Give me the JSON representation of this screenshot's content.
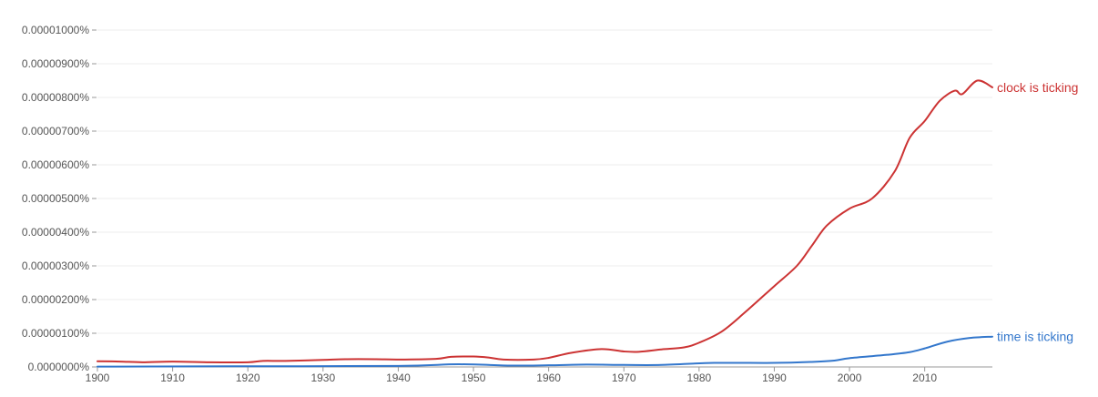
{
  "chart_data": {
    "type": "line",
    "title": "",
    "xlabel": "",
    "ylabel": "",
    "xlim": [
      1900,
      2019
    ],
    "ylim": [
      0,
      1e-05
    ],
    "grid": true,
    "legend": "inline-end-of-lines",
    "x_ticks": [
      1900,
      1910,
      1920,
      1930,
      1940,
      1950,
      1960,
      1970,
      1980,
      1990,
      2000,
      2010
    ],
    "x_tick_labels": [
      "1900",
      "1910",
      "1920",
      "1930",
      "1940",
      "1950",
      "1960",
      "1970",
      "1980",
      "1990",
      "2000",
      "2010"
    ],
    "y_ticks": [
      0,
      1e-06,
      2e-06,
      3e-06,
      4e-06,
      5e-06,
      6e-06,
      7e-06,
      8e-06,
      9e-06,
      1e-05
    ],
    "y_tick_labels": [
      "0.0000000%",
      "0.00000100%",
      "0.00000200%",
      "0.00000300%",
      "0.00000400%",
      "0.00000500%",
      "0.00000600%",
      "0.00000700%",
      "0.00000800%",
      "0.00000900%",
      "0.00001000%"
    ],
    "series": [
      {
        "name": "clock is ticking",
        "color": "#cc3333",
        "points": [
          [
            1900,
            1.7e-07
          ],
          [
            1903,
            1.6e-07
          ],
          [
            1906,
            1.4e-07
          ],
          [
            1910,
            1.6e-07
          ],
          [
            1915,
            1.4e-07
          ],
          [
            1920,
            1.4e-07
          ],
          [
            1922,
            1.8e-07
          ],
          [
            1925,
            1.8e-07
          ],
          [
            1930,
            2.1e-07
          ],
          [
            1933,
            2.3e-07
          ],
          [
            1937,
            2.3e-07
          ],
          [
            1940,
            2.2e-07
          ],
          [
            1945,
            2.4e-07
          ],
          [
            1947,
            3e-07
          ],
          [
            1950,
            3.1e-07
          ],
          [
            1952,
            2.8e-07
          ],
          [
            1954,
            2.2e-07
          ],
          [
            1958,
            2.2e-07
          ],
          [
            1960,
            2.7e-07
          ],
          [
            1963,
            4.2e-07
          ],
          [
            1967,
            5.3e-07
          ],
          [
            1970,
            4.6e-07
          ],
          [
            1972,
            4.5e-07
          ],
          [
            1975,
            5.2e-07
          ],
          [
            1978,
            5.8e-07
          ],
          [
            1980,
            7.2e-07
          ],
          [
            1983,
            1.05e-06
          ],
          [
            1986,
            1.6e-06
          ],
          [
            1990,
            2.4e-06
          ],
          [
            1993,
            3e-06
          ],
          [
            1995,
            3.6e-06
          ],
          [
            1997,
            4.2e-06
          ],
          [
            2000,
            4.7e-06
          ],
          [
            2003,
            5e-06
          ],
          [
            2006,
            5.8e-06
          ],
          [
            2008,
            6.8e-06
          ],
          [
            2010,
            7.3e-06
          ],
          [
            2012,
            7.9e-06
          ],
          [
            2014,
            8.2e-06
          ],
          [
            2015,
            8.1e-06
          ],
          [
            2017,
            8.5e-06
          ],
          [
            2019,
            8.3e-06
          ]
        ]
      },
      {
        "name": "time is ticking",
        "color": "#3377cc",
        "points": [
          [
            1900,
            1e-08
          ],
          [
            1920,
            2e-08
          ],
          [
            1940,
            3e-08
          ],
          [
            1948,
            8e-08
          ],
          [
            1955,
            4e-08
          ],
          [
            1960,
            5e-08
          ],
          [
            1965,
            7e-08
          ],
          [
            1970,
            6e-08
          ],
          [
            1975,
            6e-08
          ],
          [
            1982,
            1.2e-07
          ],
          [
            1990,
            1.2e-07
          ],
          [
            1995,
            1.5e-07
          ],
          [
            1998,
            1.9e-07
          ],
          [
            2000,
            2.6e-07
          ],
          [
            2005,
            3.6e-07
          ],
          [
            2008,
            4.4e-07
          ],
          [
            2010,
            5.5e-07
          ],
          [
            2013,
            7.5e-07
          ],
          [
            2016,
            8.6e-07
          ],
          [
            2019,
            9e-07
          ]
        ]
      }
    ]
  }
}
